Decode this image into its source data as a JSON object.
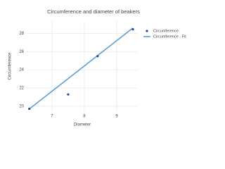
{
  "chart_data": {
    "type": "scatter",
    "title": "Circumference and diameter of beakers",
    "x_label": "Diameter",
    "y_label": "Circumference",
    "series": [
      {
        "name": "Circumference",
        "type": "scatter",
        "color": "#1f4e9c",
        "x": [
          6.3,
          7.5,
          8.41,
          9.5
        ],
        "values": [
          19.72,
          21.3,
          25.5,
          28.45
        ]
      },
      {
        "name": "Circumference - Fit",
        "type": "line",
        "color": "#5a9fd4",
        "x": [
          6.3,
          9.5
        ],
        "values": [
          19.7,
          28.6
        ]
      }
    ],
    "xlim": [
      6.22,
      9.63
    ],
    "ylim": [
      19.45,
      29.35
    ],
    "xticks": [
      7,
      8,
      9
    ],
    "yticks": [
      20,
      22,
      24,
      26,
      28
    ],
    "grid": true
  }
}
